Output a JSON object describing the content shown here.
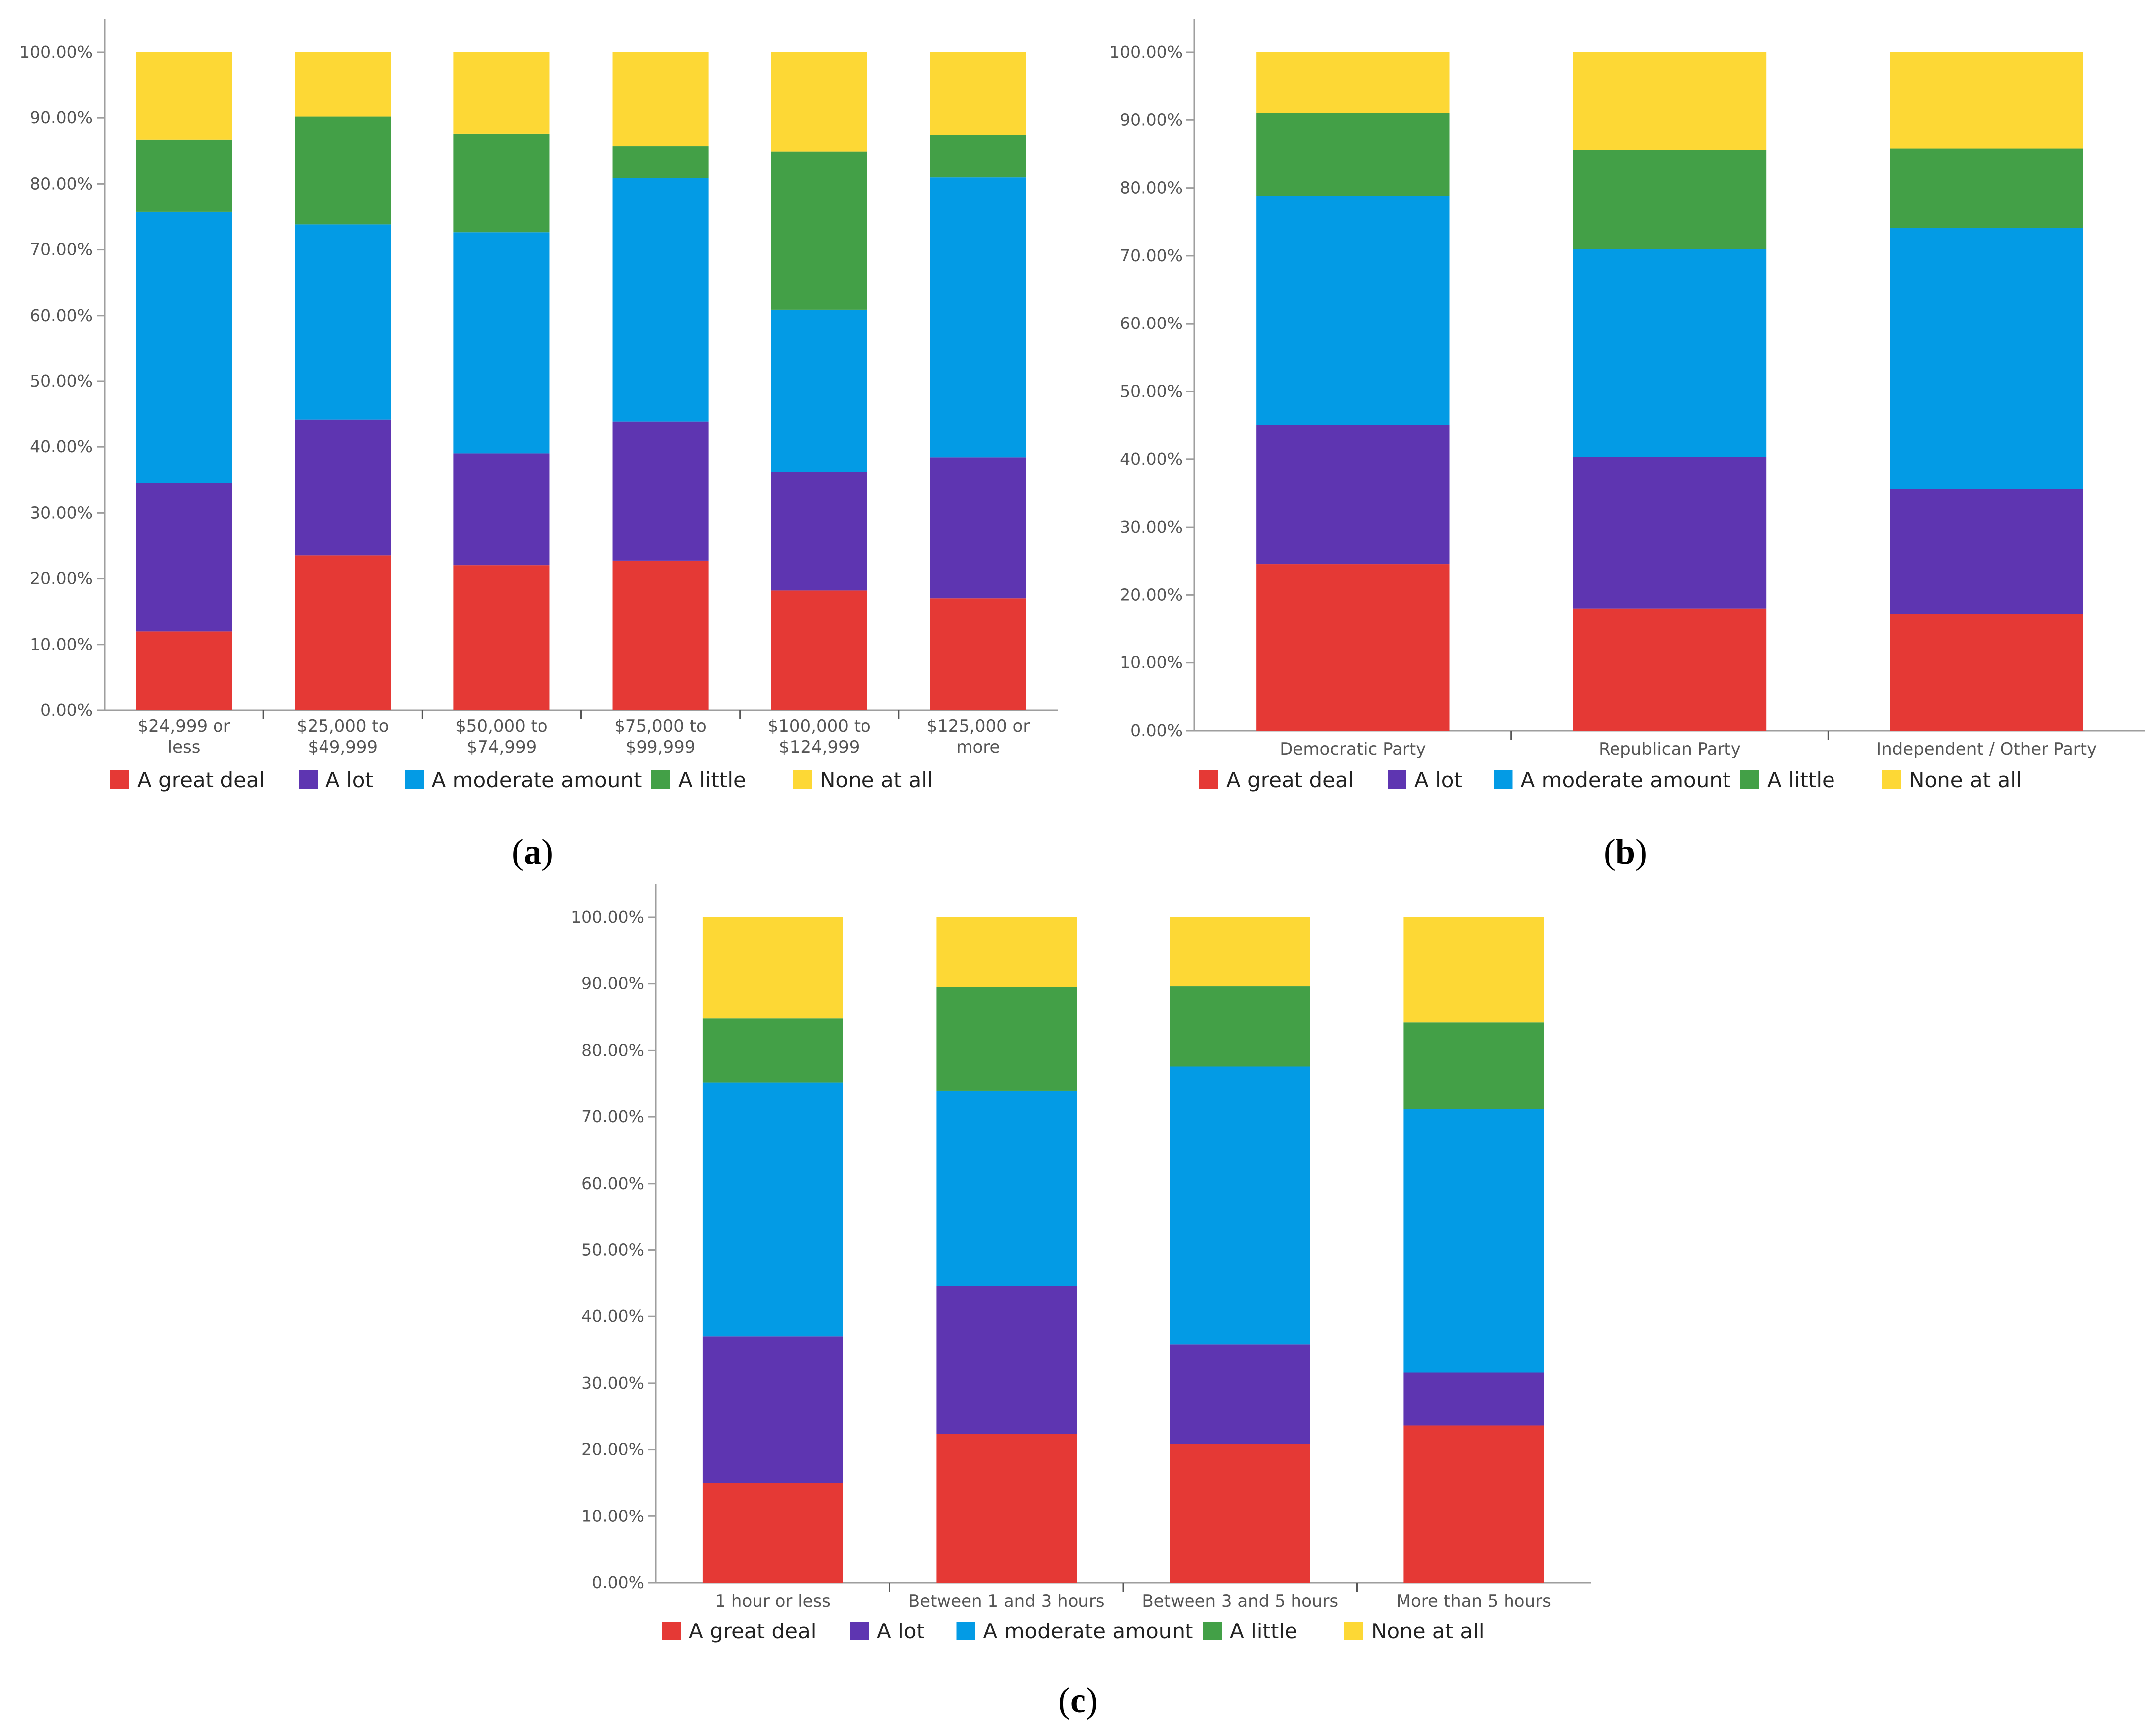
{
  "series_colors": {
    "A great deal": "#e53935",
    "A lot": "#5e35b1",
    "A moderate amount": "#039be5",
    "A little": "#43a047",
    "None at all": "#fdd835"
  },
  "legend": [
    "A great deal",
    "A lot",
    "A moderate amount",
    "A little",
    "None at all"
  ],
  "panel_labels": {
    "a": {
      "open": "(",
      "letter": "a",
      "close": ")"
    },
    "b": {
      "open": "(",
      "letter": "b",
      "close": ")"
    },
    "c": {
      "open": "(",
      "letter": "c",
      "close": ")"
    }
  },
  "chart_data": [
    {
      "id": "a",
      "type": "bar",
      "stacked": true,
      "ylim": [
        0,
        100
      ],
      "yticks": [
        "0.00%",
        "10.00%",
        "20.00%",
        "30.00%",
        "40.00%",
        "50.00%",
        "60.00%",
        "70.00%",
        "80.00%",
        "90.00%",
        "100.00%"
      ],
      "categories": [
        [
          "$24,999 or",
          "less"
        ],
        [
          "$25,000 to",
          "$49,999"
        ],
        [
          "$50,000 to",
          "$74,999"
        ],
        [
          "$75,000 to",
          "$99,999"
        ],
        [
          "$100,000 to",
          "$124,999"
        ],
        [
          "$125,000 or",
          "more"
        ]
      ],
      "series": [
        {
          "name": "A great deal",
          "values": [
            12.0,
            23.5,
            22.0,
            22.7,
            18.2,
            17.0
          ]
        },
        {
          "name": "A lot",
          "values": [
            22.5,
            20.7,
            17.0,
            21.2,
            18.0,
            21.4
          ]
        },
        {
          "name": "A moderate amount",
          "values": [
            41.3,
            29.6,
            33.6,
            37.0,
            24.7,
            42.6
          ]
        },
        {
          "name": "A little",
          "values": [
            10.9,
            16.4,
            15.0,
            4.8,
            24.0,
            6.4
          ]
        },
        {
          "name": "None at all",
          "values": [
            13.3,
            9.8,
            12.4,
            14.3,
            15.1,
            12.6
          ]
        }
      ]
    },
    {
      "id": "b",
      "type": "bar",
      "stacked": true,
      "ylim": [
        0,
        100
      ],
      "yticks": [
        "0.00%",
        "10.00%",
        "20.00%",
        "30.00%",
        "40.00%",
        "50.00%",
        "60.00%",
        "70.00%",
        "80.00%",
        "90.00%",
        "100.00%"
      ],
      "categories": [
        [
          "Democratic Party"
        ],
        [
          "Republican Party"
        ],
        [
          "Independent / Other Party"
        ]
      ],
      "series": [
        {
          "name": "A great deal",
          "values": [
            24.5,
            18.0,
            17.2
          ]
        },
        {
          "name": "A lot",
          "values": [
            20.6,
            22.3,
            18.4
          ]
        },
        {
          "name": "A moderate amount",
          "values": [
            33.7,
            30.7,
            38.5
          ]
        },
        {
          "name": "A little",
          "values": [
            12.2,
            14.6,
            11.7
          ]
        },
        {
          "name": "None at all",
          "values": [
            9.0,
            14.4,
            14.2
          ]
        }
      ]
    },
    {
      "id": "c",
      "type": "bar",
      "stacked": true,
      "ylim": [
        0,
        100
      ],
      "yticks": [
        "0.00%",
        "10.00%",
        "20.00%",
        "30.00%",
        "40.00%",
        "50.00%",
        "60.00%",
        "70.00%",
        "80.00%",
        "90.00%",
        "100.00%"
      ],
      "categories": [
        [
          "1 hour or less"
        ],
        [
          "Between 1 and 3 hours"
        ],
        [
          "Between 3 and 5 hours"
        ],
        [
          "More than 5 hours"
        ]
      ],
      "series": [
        {
          "name": "A great deal",
          "values": [
            15.0,
            22.3,
            20.8,
            23.6
          ]
        },
        {
          "name": "A lot",
          "values": [
            22.0,
            22.3,
            15.0,
            8.0
          ]
        },
        {
          "name": "A moderate amount",
          "values": [
            38.2,
            29.3,
            41.8,
            39.6
          ]
        },
        {
          "name": "A little",
          "values": [
            9.6,
            15.6,
            12.0,
            13.0
          ]
        },
        {
          "name": "None at all",
          "values": [
            15.2,
            10.5,
            10.4,
            15.8
          ]
        }
      ]
    }
  ]
}
